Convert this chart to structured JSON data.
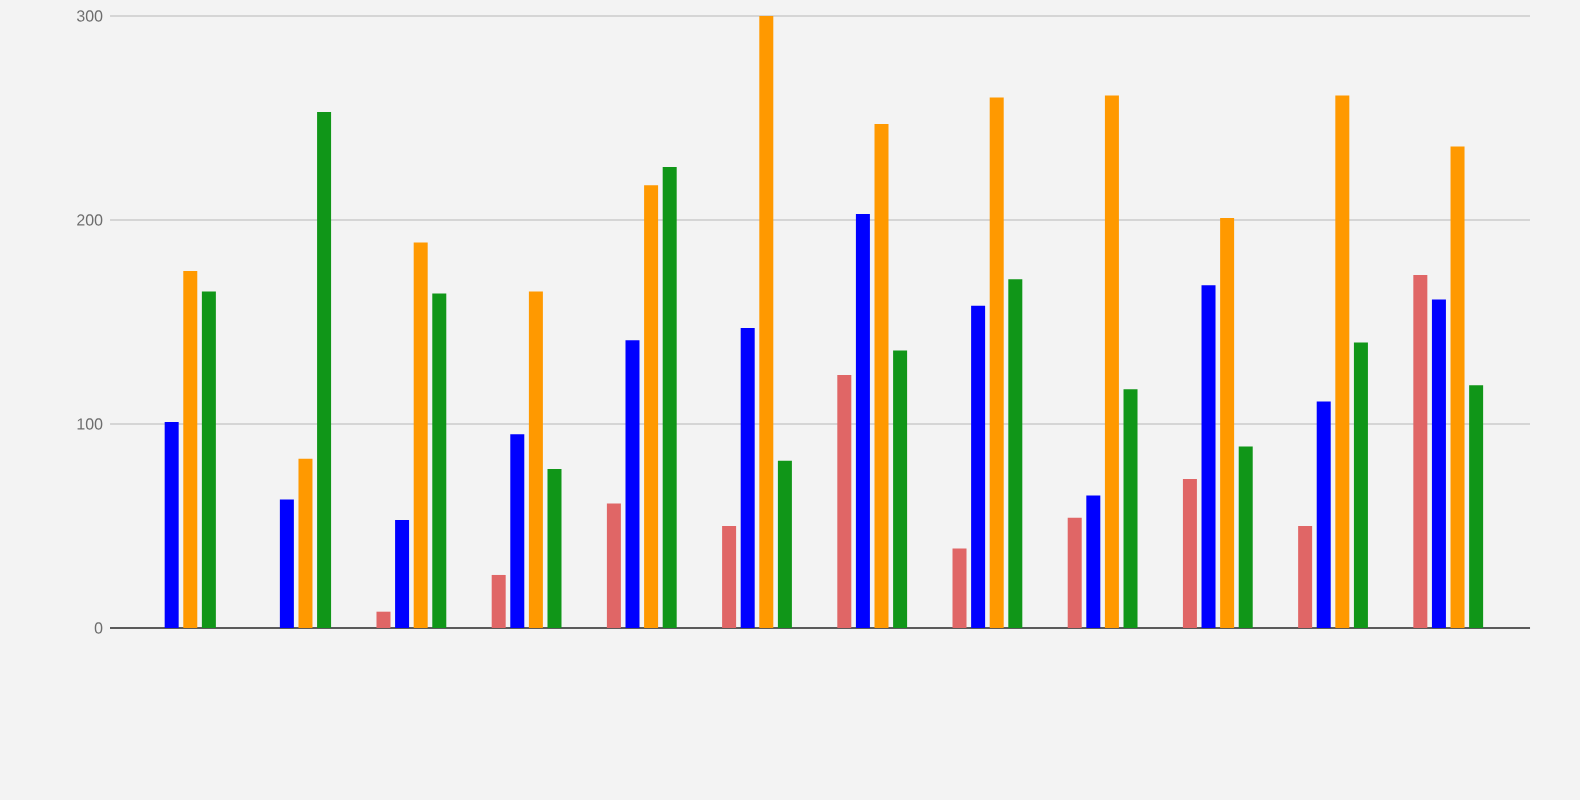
{
  "chart_data": {
    "type": "bar",
    "categories": [
      null,
      null,
      null,
      null,
      null,
      null,
      null,
      null,
      null,
      null,
      null,
      null
    ],
    "series": [
      {
        "color": "#e06666",
        "values": [
          0,
          0,
          8,
          26,
          61,
          50,
          124,
          39,
          54,
          73,
          50,
          173
        ]
      },
      {
        "color": "#0000ff",
        "values": [
          101,
          63,
          53,
          95,
          141,
          147,
          203,
          158,
          65,
          168,
          111,
          161
        ]
      },
      {
        "color": "#ff9900",
        "values": [
          175,
          83,
          189,
          165,
          217,
          300,
          247,
          260,
          261,
          201,
          261,
          236
        ]
      },
      {
        "color": "#109618",
        "values": [
          165,
          253,
          164,
          78,
          226,
          82,
          136,
          171,
          117,
          89,
          140,
          119
        ]
      }
    ],
    "ylim": [
      0,
      300
    ],
    "yticks": [
      0,
      100,
      200,
      300
    ],
    "grid": "y"
  }
}
